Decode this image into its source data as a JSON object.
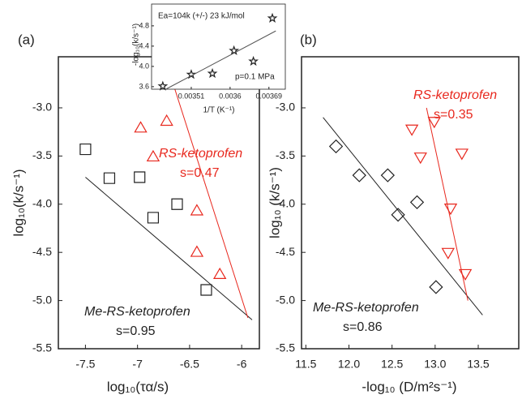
{
  "chart_data": [
    {
      "type": "scatter",
      "panel_label": "(a)",
      "x_label": "log₁₀(τα/s)",
      "y_label": "log₁₀(k/s⁻¹)",
      "xlim": [
        -7.76,
        -5.83
      ],
      "ylim": [
        -5.5,
        -2.47
      ],
      "xticks": [
        -7.5,
        -7.0,
        -6.5,
        -6.0
      ],
      "yticks": [
        {
          "value": -3.0,
          "label": "-3.0"
        },
        -3.5,
        {
          "value": -4.0,
          "label": "-4.0"
        },
        -4.5,
        {
          "value": -5.0,
          "label": "-5.0"
        },
        -5.5
      ],
      "series": [
        {
          "marker": "square",
          "color": "#222222",
          "x": [
            -7.5,
            -7.27,
            -6.98,
            -6.85,
            -6.62,
            -6.34
          ],
          "values": [
            -3.43,
            -3.73,
            -3.72,
            -4.14,
            -4.0,
            -4.89
          ]
        },
        {
          "marker": "triangle-up",
          "color": "#e8281e",
          "x": [
            -6.97,
            -6.72,
            -6.85,
            -6.43,
            -6.43,
            -6.21
          ],
          "values": [
            -3.21,
            -3.14,
            -3.51,
            -4.07,
            -4.5,
            -4.73
          ]
        },
        {
          "marker": "line",
          "color": "#222222",
          "x": [
            -7.5,
            -5.9
          ],
          "values": [
            -3.72,
            -5.2
          ]
        },
        {
          "marker": "line",
          "color": "#e8281e",
          "x": [
            -6.72,
            -5.94
          ],
          "values": [
            -2.54,
            -5.18
          ]
        }
      ],
      "annotations": [
        {
          "text": "RS-ketoprofen",
          "color": "#e8281e",
          "italic": true
        },
        {
          "text": "s=0.47",
          "color": "#e8281e",
          "italic": false
        },
        {
          "text": "Me-RS-ketoprofen",
          "color": "#222222",
          "italic": true
        },
        {
          "text": "s=0.95",
          "color": "#222222",
          "italic": false
        }
      ]
    },
    {
      "type": "scatter",
      "x_label": "1/T (K⁻¹)",
      "y_label": "-log₁₀(k/s⁻¹)",
      "xlim": [
        0.003418,
        0.003728
      ],
      "ylim": [
        3.55,
        5.23
      ],
      "xticks": [
        0.00351,
        0.0036,
        0.00369
      ],
      "yticks": [
        3.6,
        {
          "value": 4.0,
          "label": "4.0"
        },
        4.4,
        4.8
      ],
      "series": [
        {
          "marker": "star",
          "color": "#222222",
          "x": [
            0.003444,
            0.00351,
            0.003559,
            0.003609,
            0.003654,
            0.003698
          ],
          "values": [
            3.61,
            3.84,
            3.86,
            4.31,
            4.1,
            4.95
          ]
        },
        {
          "marker": "line",
          "color": "#555555",
          "x": [
            0.003451,
            0.003706
          ],
          "values": [
            3.55,
            4.7
          ]
        }
      ],
      "annotations": [
        {
          "text": "Ea=104k (+/-) 23 kJ/mol",
          "color": "#222222",
          "italic": false
        },
        {
          "text": "p=0.1 MPa",
          "color": "#222222",
          "italic": false
        }
      ]
    },
    {
      "type": "scatter",
      "panel_label": "(b)",
      "x_label": "-log₁₀ (D/m²s⁻¹)",
      "y_label": "log₁₀ (k/s⁻¹)",
      "xlim": [
        11.45,
        13.97
      ],
      "ylim": [
        -5.5,
        -2.47
      ],
      "xticks": [
        11.5,
        {
          "value": 12.0,
          "label": "12.0"
        },
        12.5,
        {
          "value": 13.0,
          "label": "13.0"
        },
        13.5
      ],
      "yticks": [
        {
          "value": -3.0,
          "label": "-3.0"
        },
        -3.5,
        {
          "value": -4.0,
          "label": "-4.0"
        },
        -4.5,
        {
          "value": -5.0,
          "label": "-5.0"
        },
        -5.5
      ],
      "series": [
        {
          "marker": "diamond",
          "color": "#222222",
          "x": [
            11.85,
            12.12,
            12.45,
            12.57,
            12.79,
            13.01
          ],
          "values": [
            -3.4,
            -3.7,
            -3.7,
            -4.11,
            -3.98,
            -4.86
          ]
        },
        {
          "marker": "triangle-down",
          "color": "#e8281e",
          "x": [
            12.73,
            12.99,
            12.83,
            13.31,
            13.18,
            13.15,
            13.35
          ],
          "values": [
            -3.22,
            -3.14,
            -3.51,
            -3.47,
            -4.04,
            -4.5,
            -4.72
          ]
        },
        {
          "marker": "line",
          "color": "#222222",
          "x": [
            11.7,
            13.55
          ],
          "values": [
            -3.1,
            -5.15
          ]
        },
        {
          "marker": "line",
          "color": "#e8281e",
          "x": [
            12.9,
            13.38
          ],
          "values": [
            -3.0,
            -5.0
          ]
        }
      ],
      "annotations": [
        {
          "text": "RS-ketoprofen",
          "color": "#e8281e",
          "italic": true
        },
        {
          "text": "s=0.35",
          "color": "#e8281e",
          "italic": false
        },
        {
          "text": "Me-RS-ketoprofen",
          "color": "#222222",
          "italic": true
        },
        {
          "text": "s=0.86",
          "color": "#222222",
          "italic": false
        }
      ]
    }
  ]
}
